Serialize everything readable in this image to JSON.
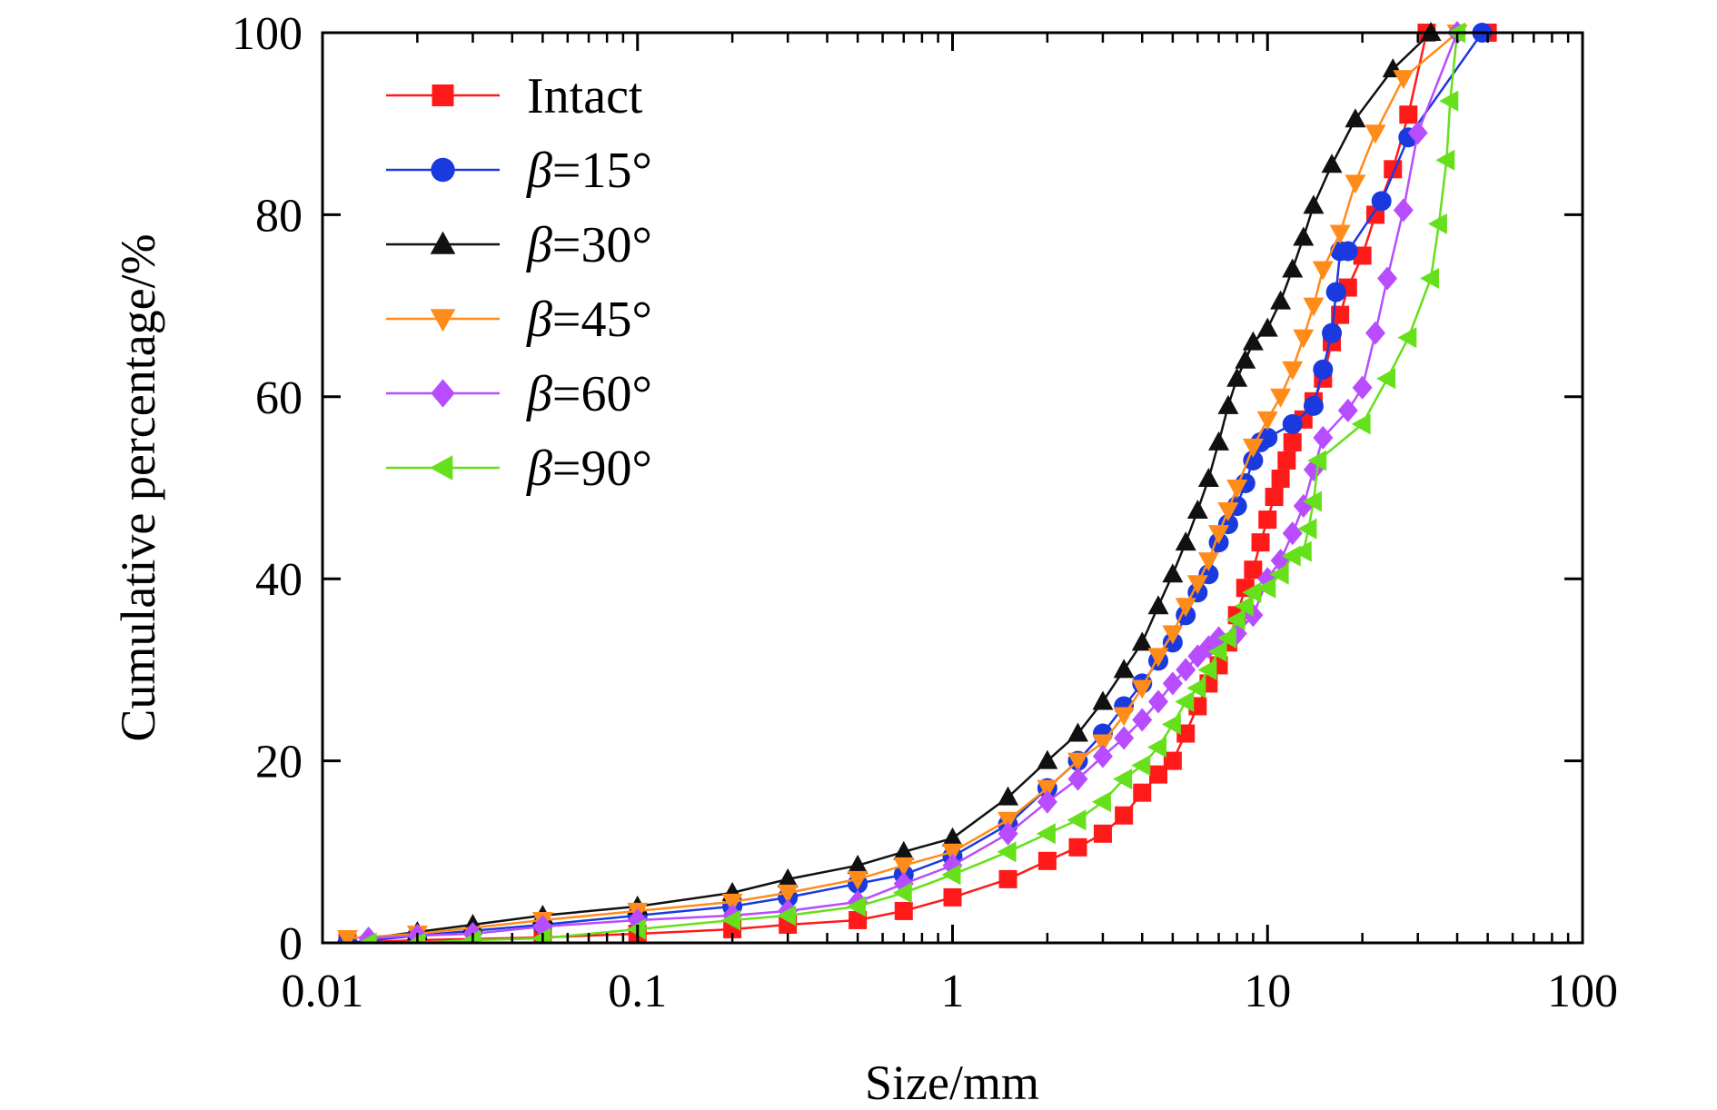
{
  "chart_data": {
    "type": "line",
    "xlabel": "Size/mm",
    "ylabel": "Cumulative percentage/%",
    "x_scale": "log",
    "xlim": [
      0.01,
      100
    ],
    "ylim": [
      0,
      100
    ],
    "x_ticks": [
      0.01,
      0.1,
      1,
      10,
      100
    ],
    "x_tick_labels": [
      "0.01",
      "0.1",
      "1",
      "10",
      "100"
    ],
    "y_ticks": [
      0,
      20,
      40,
      60,
      80,
      100
    ],
    "y_tick_labels": [
      "0",
      "20",
      "40",
      "60",
      "80",
      "100"
    ],
    "grid": false,
    "legend_position": "top-left",
    "series": [
      {
        "name": "Intact",
        "color": "#ff1a1a",
        "marker": "square",
        "x": [
          0.012,
          0.02,
          0.05,
          0.1,
          0.2,
          0.3,
          0.5,
          0.7,
          1.0,
          1.5,
          2.0,
          2.5,
          3.0,
          3.5,
          4.0,
          4.5,
          5.0,
          5.5,
          6.0,
          6.5,
          7.0,
          7.5,
          8.0,
          8.5,
          9.0,
          9.5,
          10.0,
          10.5,
          11.0,
          11.5,
          12.0,
          13.0,
          14.0,
          15.0,
          16.0,
          17.0,
          18.0,
          20.0,
          22.0,
          25.0,
          28.0,
          32.0,
          50.0
        ],
        "y": [
          0,
          0.3,
          0.6,
          1.0,
          1.5,
          2.0,
          2.5,
          3.5,
          5.0,
          7.0,
          9.0,
          10.5,
          12.0,
          14.0,
          16.5,
          18.5,
          20.0,
          23.0,
          26.0,
          28.5,
          30.5,
          33.0,
          36.0,
          39.0,
          41.0,
          44.0,
          46.5,
          49.0,
          51.0,
          53.0,
          55.0,
          57.5,
          59.5,
          62.0,
          66.0,
          69.0,
          72.0,
          75.5,
          80.0,
          85.0,
          91.0,
          100.0,
          100.0
        ]
      },
      {
        "name": "β=15°",
        "color": "#1a3ae0",
        "marker": "circle",
        "x": [
          0.012,
          0.02,
          0.05,
          0.1,
          0.2,
          0.3,
          0.5,
          0.7,
          1.0,
          1.5,
          2.0,
          2.5,
          3.0,
          3.5,
          4.0,
          4.5,
          5.0,
          5.5,
          6.0,
          6.5,
          7.0,
          7.5,
          8.0,
          8.5,
          9.0,
          9.5,
          10.0,
          12.0,
          14.0,
          15.0,
          16.0,
          16.5,
          17.0,
          18.0,
          23.0,
          28.0,
          48.0
        ],
        "y": [
          0,
          0.8,
          2.0,
          3.0,
          4.0,
          5.0,
          6.5,
          7.5,
          9.5,
          13.0,
          17.0,
          20.0,
          23.0,
          26.0,
          28.5,
          31.0,
          33.0,
          36.0,
          38.5,
          40.5,
          44.0,
          46.0,
          48.0,
          50.5,
          53.0,
          55.0,
          55.5,
          57.0,
          59.0,
          63.0,
          67.0,
          71.5,
          76.0,
          76.0,
          81.5,
          88.5,
          100.0
        ]
      },
      {
        "name": "β=30°",
        "color": "#111111",
        "marker": "triangle-up",
        "x": [
          0.014,
          0.02,
          0.03,
          0.05,
          0.1,
          0.2,
          0.3,
          0.5,
          0.7,
          1.0,
          1.5,
          2.0,
          2.5,
          3.0,
          3.5,
          4.0,
          4.5,
          5.0,
          5.5,
          6.0,
          6.5,
          7.0,
          7.5,
          8.0,
          8.5,
          9.0,
          10.0,
          11.0,
          12.0,
          13.0,
          14.0,
          16.0,
          19.0,
          25.0,
          33.0
        ],
        "y": [
          0.5,
          1.2,
          2.0,
          3.0,
          4.0,
          5.5,
          7.0,
          8.5,
          10.0,
          11.5,
          16.0,
          20.0,
          23.0,
          26.5,
          30.0,
          33.0,
          37.0,
          40.5,
          44.0,
          47.5,
          51.0,
          55.0,
          59.0,
          62.0,
          64.0,
          66.0,
          67.5,
          70.5,
          74.0,
          77.5,
          81.0,
          85.5,
          90.5,
          96.0,
          100.0
        ]
      },
      {
        "name": "β=45°",
        "color": "#ff8c1a",
        "marker": "triangle-down",
        "x": [
          0.012,
          0.02,
          0.05,
          0.1,
          0.2,
          0.3,
          0.5,
          0.7,
          1.0,
          1.5,
          2.0,
          2.5,
          3.0,
          3.5,
          4.0,
          4.5,
          5.0,
          5.5,
          6.0,
          6.5,
          7.0,
          7.5,
          8.0,
          9.0,
          10.0,
          11.0,
          12.0,
          13.0,
          14.0,
          15.0,
          17.0,
          19.0,
          22.0,
          27.0,
          40.0
        ],
        "y": [
          0.5,
          1.0,
          2.5,
          3.5,
          4.5,
          5.5,
          7.0,
          8.5,
          10.0,
          13.5,
          17.0,
          20.0,
          22.0,
          25.0,
          28.0,
          31.5,
          34.0,
          37.0,
          39.5,
          42.0,
          45.0,
          47.5,
          50.0,
          54.5,
          57.5,
          60.0,
          63.0,
          66.5,
          70.0,
          74.0,
          78.0,
          83.5,
          89.0,
          95.0,
          100.0
        ]
      },
      {
        "name": "β=60°",
        "color": "#b84dff",
        "marker": "diamond",
        "x": [
          0.014,
          0.02,
          0.03,
          0.05,
          0.1,
          0.2,
          0.3,
          0.5,
          0.7,
          1.0,
          1.5,
          2.0,
          2.5,
          3.0,
          3.5,
          4.0,
          4.5,
          5.0,
          5.5,
          6.0,
          6.5,
          7.0,
          8.0,
          9.0,
          10.0,
          11.0,
          12.0,
          13.0,
          14.0,
          15.0,
          18.0,
          20.0,
          22.0,
          24.0,
          27.0,
          30.0,
          40.0
        ],
        "y": [
          0.5,
          0.8,
          1.0,
          1.8,
          2.5,
          3.0,
          3.5,
          4.5,
          6.5,
          8.5,
          12.0,
          15.5,
          18.0,
          20.5,
          22.5,
          24.5,
          26.5,
          28.5,
          30.0,
          31.5,
          32.5,
          33.5,
          34.0,
          36.0,
          40.0,
          42.0,
          45.0,
          48.0,
          52.0,
          55.5,
          58.5,
          61.0,
          67.0,
          73.0,
          80.5,
          89.0,
          100.0
        ]
      },
      {
        "name": "β=90°",
        "color": "#66e01a",
        "marker": "triangle-left",
        "x": [
          0.014,
          0.02,
          0.03,
          0.05,
          0.1,
          0.2,
          0.3,
          0.5,
          0.7,
          1.0,
          1.5,
          2.0,
          2.5,
          3.0,
          3.5,
          4.0,
          4.5,
          5.0,
          5.5,
          6.0,
          6.5,
          7.0,
          7.5,
          8.0,
          8.5,
          9.0,
          10.0,
          11.0,
          12.0,
          13.0,
          13.5,
          14.0,
          14.5,
          20.0,
          24.0,
          28.0,
          33.0,
          35.0,
          37.0,
          38.0,
          40.0
        ],
        "y": [
          0,
          0,
          0.3,
          0.5,
          1.5,
          2.5,
          3.0,
          4.0,
          5.5,
          7.5,
          10.0,
          12.0,
          13.5,
          15.5,
          18.0,
          19.5,
          21.5,
          24.0,
          26.5,
          28.0,
          30.0,
          32.0,
          33.5,
          35.5,
          37.0,
          38.5,
          39.0,
          40.5,
          42.5,
          43.0,
          45.5,
          48.5,
          53.0,
          57.0,
          62.0,
          66.5,
          73.0,
          79.0,
          86.0,
          92.5,
          100.0
        ]
      }
    ]
  }
}
